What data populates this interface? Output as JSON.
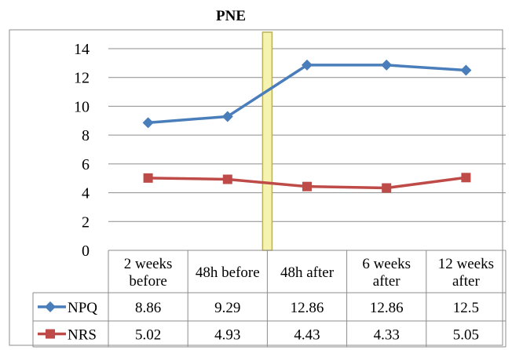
{
  "chart_data": {
    "type": "line",
    "annotation": "PNE",
    "annotation_category_index": 1,
    "categories": [
      [
        "2 weeks",
        "before"
      ],
      [
        "48h before"
      ],
      [
        "48h after"
      ],
      [
        "6 weeks",
        "after"
      ],
      [
        "12 weeks",
        "after"
      ]
    ],
    "ylim": [
      0,
      14
    ],
    "yticks": [
      0,
      2,
      4,
      6,
      8,
      10,
      12,
      14
    ],
    "grid": true,
    "legend_placement": "data-table",
    "series": [
      {
        "name": "NPQ",
        "values": [
          8.86,
          9.29,
          12.86,
          12.86,
          12.5
        ],
        "value_labels": [
          "8.86",
          "9.29",
          "12.86",
          "12.86",
          "12.5"
        ],
        "color": "#4a7ebb",
        "marker": "diamond"
      },
      {
        "name": "NRS",
        "values": [
          5.02,
          4.93,
          4.43,
          4.33,
          5.05
        ],
        "value_labels": [
          "5.02",
          "4.93",
          "4.43",
          "4.33",
          "5.05"
        ],
        "color": "#be4b48",
        "marker": "square"
      }
    ],
    "colors": {
      "annotation_band_fill": "#f6f3b0",
      "annotation_band_stroke": "#b9b15a",
      "grid": "#8c8c8c",
      "border": "#8c8c8c"
    }
  }
}
